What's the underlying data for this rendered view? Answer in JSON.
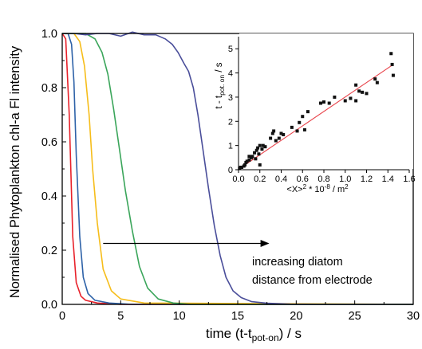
{
  "chart_data": [
    {
      "type": "line",
      "xlabel_main": "time (t-t",
      "xlabel_sub": "pot-on",
      "xlabel_end": ") / s",
      "ylabel": "Normalised Phytoplankton chl-a Fl intensity",
      "xlim": [
        0,
        30
      ],
      "ylim": [
        0,
        1.0
      ],
      "xticks": [
        0,
        5,
        10,
        15,
        20,
        25,
        30
      ],
      "yticks": [
        0.0,
        0.2,
        0.4,
        0.6,
        0.8,
        1.0
      ],
      "x_tick_labels": [
        "0",
        "5",
        "10",
        "15",
        "20",
        "25",
        "30"
      ],
      "y_tick_labels": [
        "0.0",
        "0.2",
        "0.4",
        "0.6",
        "0.8",
        "1.0"
      ],
      "annotation": {
        "line1": "increasing diatom",
        "line2": "distance from electrode",
        "arrow_from": [
          3.5,
          0.225
        ],
        "arrow_to": [
          17.7,
          0.225
        ]
      },
      "series": [
        {
          "color": "#e8212a",
          "x": [
            0,
            0.3,
            0.6,
            0.9,
            1.2,
            1.6,
            2.0,
            3.0,
            5.0,
            30
          ],
          "values": [
            1.0,
            0.98,
            0.7,
            0.25,
            0.08,
            0.03,
            0.015,
            0.005,
            0.0,
            0.0
          ]
        },
        {
          "color": "#2e62a8",
          "x": [
            0,
            0.5,
            0.8,
            1.0,
            1.2,
            1.5,
            1.8,
            2.2,
            2.8,
            4.0,
            6.0,
            30
          ],
          "values": [
            1.0,
            1.0,
            0.96,
            0.82,
            0.55,
            0.25,
            0.1,
            0.04,
            0.015,
            0.005,
            0.0,
            0.0
          ]
        },
        {
          "color": "#f6bd1a",
          "x": [
            0,
            1.0,
            1.5,
            1.9,
            2.3,
            2.6,
            3.0,
            3.5,
            4.2,
            5.0,
            7.0,
            30
          ],
          "values": [
            1.0,
            1.0,
            0.97,
            0.88,
            0.7,
            0.5,
            0.3,
            0.13,
            0.05,
            0.02,
            0.005,
            0.0
          ]
        },
        {
          "color": "#3aa55a",
          "x": [
            0,
            2.0,
            2.8,
            3.4,
            3.9,
            4.4,
            4.9,
            5.4,
            6.0,
            6.6,
            7.3,
            8.2,
            9.5,
            11.0,
            30
          ],
          "values": [
            1.0,
            1.0,
            0.98,
            0.93,
            0.85,
            0.72,
            0.57,
            0.42,
            0.27,
            0.14,
            0.06,
            0.02,
            0.005,
            0.0,
            0.0
          ]
        },
        {
          "color": "#4a4e9a",
          "x": [
            0,
            1.0,
            2.0,
            3.0,
            4.0,
            5.0,
            6.0,
            7.0,
            8.0,
            8.8,
            9.4,
            9.9,
            10.4,
            10.8,
            11.2,
            11.6,
            12.0,
            12.5,
            13.0,
            13.5,
            14.0,
            14.6,
            15.3,
            16.2,
            17.5,
            19.5,
            22,
            30
          ],
          "values": [
            1.0,
            1.0,
            0.995,
            1.0,
            1.0,
            0.99,
            1.005,
            0.995,
            0.995,
            0.98,
            0.96,
            0.93,
            0.89,
            0.86,
            0.8,
            0.7,
            0.58,
            0.43,
            0.29,
            0.18,
            0.1,
            0.05,
            0.025,
            0.01,
            0.004,
            0.001,
            0.0,
            0.0
          ]
        }
      ]
    },
    {
      "type": "scatter",
      "xlabel_pre": "<X>",
      "xlabel_sup": "2",
      "xlabel_post": " * 10",
      "xlabel_sup2": "-8",
      "xlabel_end": " / m",
      "xlabel_sup3": "2",
      "ylabel_pre": "t - t",
      "ylabel_sub": "pot. on",
      "ylabel_end": " / s",
      "xlim": [
        0,
        1.6
      ],
      "ylim": [
        0,
        5.5
      ],
      "xticks": [
        0,
        0.2,
        0.4,
        0.6,
        0.8,
        1.0,
        1.2,
        1.4,
        1.6
      ],
      "yticks": [
        0,
        1,
        2,
        3,
        4,
        5
      ],
      "x_tick_labels": [
        "0.0",
        "0.2",
        "0.4",
        "0.6",
        "0.8",
        "1.0",
        "1.2",
        "1.4",
        "1.6"
      ],
      "y_tick_labels": [
        "0",
        "1",
        "2",
        "3",
        "4",
        "5"
      ],
      "marker_color": "#111111",
      "fit_color": "#e8434a",
      "fit": {
        "x": [
          0,
          1.45
        ],
        "y": [
          0.02,
          4.35
        ]
      },
      "points": [
        [
          0.01,
          0.05
        ],
        [
          0.02,
          0.1
        ],
        [
          0.03,
          0.1
        ],
        [
          0.05,
          0.15
        ],
        [
          0.06,
          0.2
        ],
        [
          0.07,
          0.3
        ],
        [
          0.08,
          0.35
        ],
        [
          0.1,
          0.4
        ],
        [
          0.1,
          0.55
        ],
        [
          0.12,
          0.5
        ],
        [
          0.13,
          0.55
        ],
        [
          0.15,
          0.7
        ],
        [
          0.16,
          0.45
        ],
        [
          0.17,
          0.8
        ],
        [
          0.18,
          0.9
        ],
        [
          0.19,
          0.65
        ],
        [
          0.2,
          0.2
        ],
        [
          0.2,
          1.0
        ],
        [
          0.22,
          0.85
        ],
        [
          0.23,
          1.0
        ],
        [
          0.25,
          0.95
        ],
        [
          0.3,
          1.3
        ],
        [
          0.32,
          1.5
        ],
        [
          0.33,
          1.6
        ],
        [
          0.35,
          1.2
        ],
        [
          0.38,
          1.3
        ],
        [
          0.4,
          1.5
        ],
        [
          0.42,
          1.45
        ],
        [
          0.5,
          1.75
        ],
        [
          0.55,
          1.6
        ],
        [
          0.57,
          1.95
        ],
        [
          0.6,
          2.2
        ],
        [
          0.62,
          1.65
        ],
        [
          0.65,
          2.4
        ],
        [
          0.77,
          2.75
        ],
        [
          0.8,
          2.8
        ],
        [
          0.85,
          2.75
        ],
        [
          0.9,
          3.0
        ],
        [
          1.0,
          2.85
        ],
        [
          1.05,
          2.95
        ],
        [
          1.1,
          3.5
        ],
        [
          1.1,
          2.85
        ],
        [
          1.13,
          3.25
        ],
        [
          1.16,
          3.2
        ],
        [
          1.2,
          3.15
        ],
        [
          1.28,
          3.75
        ],
        [
          1.3,
          3.6
        ],
        [
          1.43,
          4.8
        ],
        [
          1.44,
          4.35
        ],
        [
          1.45,
          3.9
        ]
      ]
    }
  ]
}
